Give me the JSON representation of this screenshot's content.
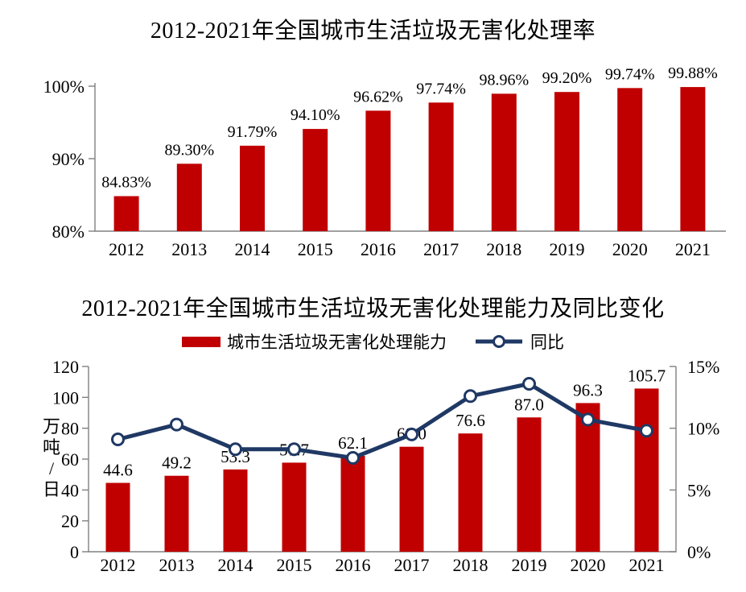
{
  "colors": {
    "bar_red": "#C00000",
    "line_navy": "#1F3864",
    "axis_gray": "#808080",
    "text": "#000000",
    "marker_fill": "#FFFFFF"
  },
  "chart_data": [
    {
      "type": "bar",
      "title": "2012-2021年全国城市生活垃圾无害化处理率",
      "categories": [
        "2012",
        "2013",
        "2014",
        "2015",
        "2016",
        "2017",
        "2018",
        "2019",
        "2020",
        "2021"
      ],
      "values": [
        84.83,
        89.3,
        91.79,
        94.1,
        96.62,
        97.74,
        98.96,
        99.2,
        99.74,
        99.88
      ],
      "data_labels": [
        "84.83%",
        "89.30%",
        "91.79%",
        "94.10%",
        "96.62%",
        "97.74%",
        "98.96%",
        "99.20%",
        "99.74%",
        "99.88%"
      ],
      "ylim": [
        80,
        100
      ],
      "yticks": [
        {
          "value": 100,
          "label": "100%"
        },
        {
          "value": 90,
          "label": "90%"
        },
        {
          "value": 80,
          "label": "80%"
        }
      ],
      "bar_color": "#C00000",
      "grid": false,
      "legend_position": "none"
    },
    {
      "type": "combo-bar-line",
      "title": "2012-2021年全国城市生活垃圾无害化处理能力及同比变化",
      "categories": [
        "2012",
        "2013",
        "2014",
        "2015",
        "2016",
        "2017",
        "2018",
        "2019",
        "2020",
        "2021"
      ],
      "series": [
        {
          "name": "城市生活垃圾无害化处理能力",
          "type": "bar",
          "axis": "left",
          "color": "#C00000",
          "values": [
            44.6,
            49.2,
            53.3,
            57.7,
            62.1,
            68.0,
            76.6,
            87.0,
            96.3,
            105.7
          ],
          "data_labels": [
            "44.6",
            "49.2",
            "53.3",
            "57.7",
            "62.1",
            "68.0",
            "76.6",
            "87.0",
            "96.3",
            "105.7"
          ]
        },
        {
          "name": "同比",
          "type": "line",
          "axis": "right",
          "color": "#1F3864",
          "marker": "circle-white",
          "values": [
            9.1,
            10.3,
            8.3,
            8.3,
            7.6,
            9.5,
            12.6,
            13.6,
            10.7,
            9.8
          ]
        }
      ],
      "left_axis": {
        "title": "万吨/日",
        "min": 0,
        "max": 120,
        "tick_step": 20,
        "tick_labels": [
          "0",
          "20",
          "40",
          "60",
          "80",
          "100",
          "120"
        ]
      },
      "right_axis": {
        "min": 0,
        "max": 15,
        "ticks": [
          {
            "value": 15,
            "label": "15%"
          },
          {
            "value": 10,
            "label": "10%"
          },
          {
            "value": 5,
            "label": "5%"
          },
          {
            "value": 0,
            "label": "0%"
          }
        ]
      },
      "grid": false,
      "legend_position": "top"
    }
  ]
}
